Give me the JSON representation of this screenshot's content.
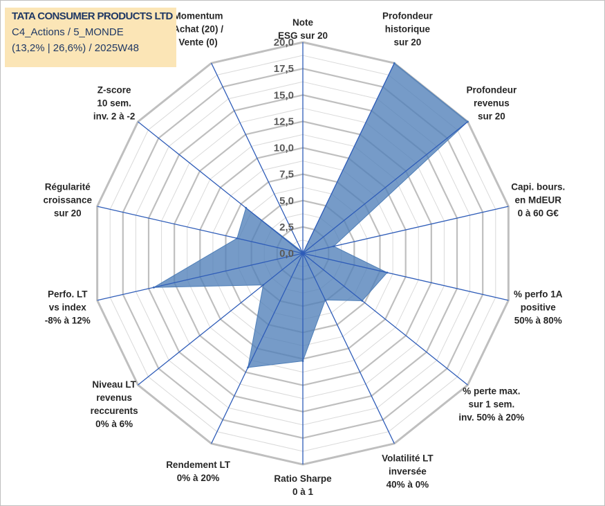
{
  "title": {
    "line1": "TATA CONSUMER PRODUCTS LTD",
    "line2": "C4_Actions / 5_MONDE",
    "line3": "(13,2% | 26,6%) / 2025W48"
  },
  "colors": {
    "fill": "#4f7fb8",
    "spoke": "#2e5cb8",
    "grid_major": "#bfbfbf",
    "grid_minor": "#d9d9d9",
    "title_bg": "#fbe5b6",
    "title_text": "#1f3864"
  },
  "chart_data": {
    "type": "radar",
    "rmax": 20,
    "tick_step": 2.5,
    "ticks": [
      "0,0",
      "2,5",
      "5,0",
      "7,5",
      "10,0",
      "12,5",
      "15,0",
      "17,5",
      "20,0"
    ],
    "grid": true,
    "axes": [
      [
        "Note",
        "ESG sur 20"
      ],
      [
        "Profondeur",
        "historique",
        "sur 20"
      ],
      [
        "Profondeur",
        "revenus",
        "sur 20"
      ],
      [
        "Capi. bours.",
        "en MdEUR",
        "0 à 60 G€"
      ],
      [
        "% perfo 1A",
        "positive",
        "50% à 80%"
      ],
      [
        "% perte max.",
        "sur 1 sem.",
        "inv. 50% à 20%"
      ],
      [
        "Volatilité LT",
        "inversée",
        "40% à 0%"
      ],
      [
        "Ratio Sharpe",
        "0 à 1"
      ],
      [
        "Rendement LT",
        "0% à 20%"
      ],
      [
        "Niveau LT",
        "revenus",
        "reccurents",
        "0% à 6%"
      ],
      [
        "Perfo. LT",
        "vs index",
        "-8% à 12%"
      ],
      [
        "Régularité",
        "croissance",
        "sur 20"
      ],
      [
        "Z-score",
        "10 sem.",
        "inv. 2 à -2"
      ],
      [
        "Momentum",
        "Achat (20) /",
        "Vente (0)"
      ]
    ],
    "values": [
      0,
      20,
      20,
      3,
      8.2,
      7.2,
      4.9,
      10.2,
      12,
      4.8,
      14.5,
      6.4,
      6.9,
      0.2
    ]
  }
}
